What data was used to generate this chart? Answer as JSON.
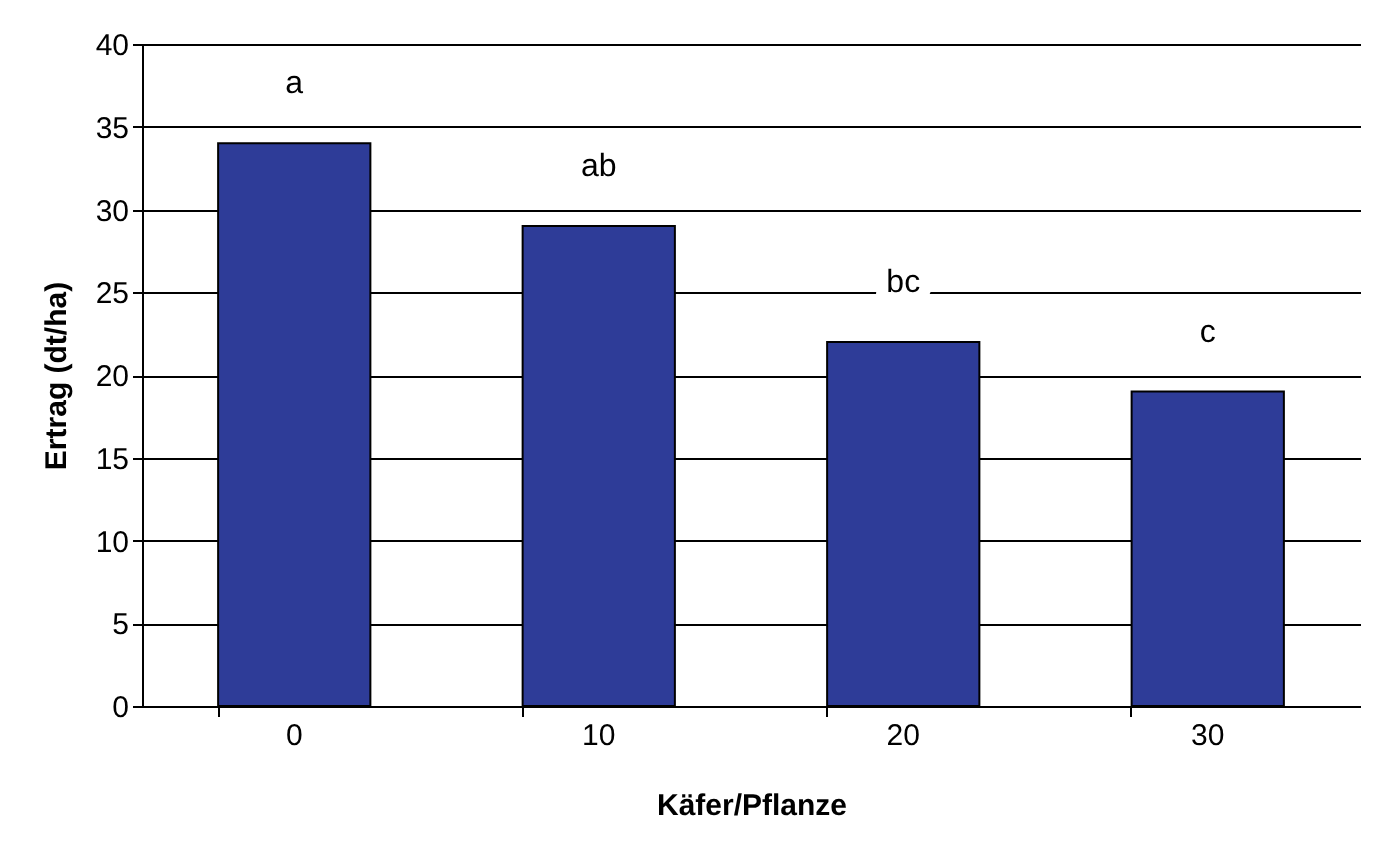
{
  "chart_data": {
    "type": "bar",
    "xlabel": "Käfer/Pflanze",
    "ylabel": "Ertrag (dt/ha)",
    "categories": [
      "0",
      "10",
      "20",
      "30"
    ],
    "values": [
      34,
      29,
      22,
      19
    ],
    "color": "#2e3c98",
    "ylim": [
      0,
      40
    ],
    "yticks": [
      0,
      5,
      10,
      15,
      20,
      25,
      30,
      35,
      40
    ],
    "grid": "y",
    "annotations": [
      "a",
      "ab",
      "bc",
      "c"
    ]
  }
}
